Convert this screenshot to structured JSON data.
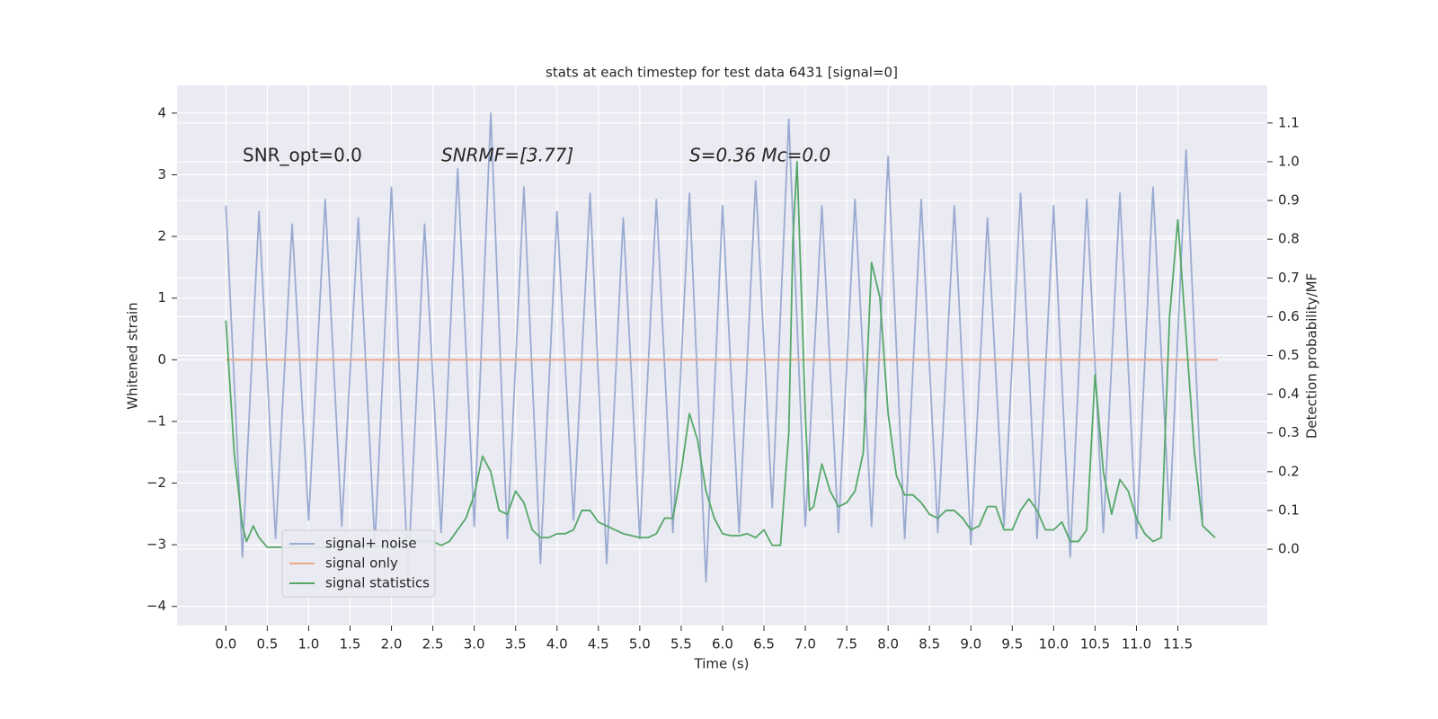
{
  "chart_data": {
    "type": "line",
    "title": "stats at each timestep for test data 6431 [signal=0]",
    "xlabel": "Time (s)",
    "ylabel": "Whitened strain",
    "y2label": "Detection probability/MF",
    "annotations": [
      "SNR_opt=0.0",
      "SNRMF=[3.77]",
      "S=0.36   Mc=0.0"
    ],
    "xlim": [
      -0.59,
      12.58
    ],
    "ylim": [
      -4.31,
      4.45
    ],
    "y2lim": [
      -0.197,
      1.197
    ],
    "xticks": [
      {
        "value": 0,
        "label": "0.0"
      },
      {
        "value": 0.5,
        "label": "0.5"
      },
      {
        "value": 1,
        "label": "1.0"
      },
      {
        "value": 1.5,
        "label": "1.5"
      },
      {
        "value": 2,
        "label": "2.0"
      },
      {
        "value": 2.5,
        "label": "2.5"
      },
      {
        "value": 3,
        "label": "3.0"
      },
      {
        "value": 3.5,
        "label": "3.5"
      },
      {
        "value": 4,
        "label": "4.0"
      },
      {
        "value": 4.5,
        "label": "4.5"
      },
      {
        "value": 5,
        "label": "5.0"
      },
      {
        "value": 5.5,
        "label": "5.5"
      },
      {
        "value": 6,
        "label": "6.0"
      },
      {
        "value": 6.5,
        "label": "6.5"
      },
      {
        "value": 7,
        "label": "7.0"
      },
      {
        "value": 7.5,
        "label": "7.5"
      },
      {
        "value": 8,
        "label": "8.0"
      },
      {
        "value": 8.5,
        "label": "8.5"
      },
      {
        "value": 9,
        "label": "9.0"
      },
      {
        "value": 9.5,
        "label": "9.5"
      },
      {
        "value": 10,
        "label": "10.0"
      },
      {
        "value": 10.5,
        "label": "10.5"
      },
      {
        "value": 11,
        "label": "11.0"
      },
      {
        "value": 11.5,
        "label": "11.5"
      }
    ],
    "yticks": [
      {
        "value": -4,
        "label": "−4"
      },
      {
        "value": -3,
        "label": "−3"
      },
      {
        "value": -2,
        "label": "−2"
      },
      {
        "value": -1,
        "label": "−1"
      },
      0,
      1,
      2,
      3,
      4
    ],
    "y2ticks": [
      {
        "value": 0,
        "label": "0.0"
      },
      0.1,
      0.2,
      0.3,
      0.4,
      0.5,
      0.6,
      0.7,
      0.8,
      0.9,
      {
        "value": 1,
        "label": "1.0"
      },
      1.1
    ],
    "grid": true,
    "legend": "lower left",
    "series": [
      {
        "name": "signal+ noise",
        "color": "#9aabd1",
        "x": [
          0,
          0.2,
          0.4,
          0.6,
          0.8,
          1,
          1.2,
          1.4,
          1.6,
          1.8,
          2,
          2.2,
          2.4,
          2.6,
          2.8,
          3,
          3.2,
          3.4,
          3.6,
          3.8,
          4,
          4.2,
          4.4,
          4.6,
          4.8,
          5,
          5.2,
          5.4,
          5.6,
          5.8,
          6,
          6.2,
          6.4,
          6.6,
          6.8,
          7,
          7.2,
          7.4,
          7.6,
          7.8,
          8,
          8.2,
          8.4,
          8.6,
          8.8,
          9,
          9.2,
          9.4,
          9.6,
          9.8,
          10,
          10.2,
          10.4,
          10.6,
          10.8,
          11,
          11.2,
          11.4,
          11.6,
          11.8
        ],
        "values": [
          2.5,
          -3.2,
          2.4,
          -2.9,
          2.2,
          -2.6,
          2.6,
          -2.7,
          2.3,
          -3.0,
          2.8,
          -3.5,
          2.2,
          -2.8,
          3.1,
          -2.7,
          4.0,
          -2.9,
          2.8,
          -3.3,
          2.4,
          -2.6,
          2.7,
          -3.3,
          2.3,
          -2.9,
          2.6,
          -2.8,
          2.7,
          -3.6,
          2.5,
          -2.8,
          2.9,
          -2.4,
          3.9,
          -2.7,
          2.5,
          -2.8,
          2.6,
          -2.7,
          3.3,
          -2.9,
          2.6,
          -2.8,
          2.5,
          -3.0,
          2.3,
          -2.7,
          2.7,
          -2.9,
          2.5,
          -3.2,
          2.6,
          -2.8,
          2.7,
          -2.9,
          2.8,
          -2.6,
          3.4,
          -2.6
        ]
      },
      {
        "name": "signal only",
        "color": "#e9a98b",
        "x": [
          0,
          11.98
        ],
        "values": [
          0,
          0
        ]
      },
      {
        "name": "signal statistics",
        "color": "#55a868",
        "axis": "y2",
        "x": [
          0,
          0.1,
          0.2,
          0.25,
          0.33,
          0.4,
          0.5,
          0.7,
          1.0,
          1.3,
          1.5,
          1.6,
          1.7,
          1.8,
          1.9,
          2.0,
          2.1,
          2.2,
          2.3,
          2.4,
          2.5,
          2.6,
          2.7,
          2.8,
          2.9,
          3.0,
          3.1,
          3.2,
          3.3,
          3.4,
          3.5,
          3.6,
          3.7,
          3.8,
          3.9,
          4.0,
          4.1,
          4.2,
          4.3,
          4.4,
          4.5,
          4.6,
          4.7,
          4.8,
          4.9,
          5.0,
          5.1,
          5.2,
          5.3,
          5.4,
          5.5,
          5.6,
          5.7,
          5.8,
          5.9,
          6.0,
          6.1,
          6.2,
          6.3,
          6.4,
          6.5,
          6.6,
          6.7,
          6.8,
          6.85,
          6.9,
          7.0,
          7.05,
          7.1,
          7.2,
          7.3,
          7.4,
          7.5,
          7.6,
          7.7,
          7.8,
          7.9,
          8.0,
          8.1,
          8.2,
          8.3,
          8.4,
          8.5,
          8.6,
          8.7,
          8.8,
          8.9,
          9.0,
          9.1,
          9.2,
          9.3,
          9.4,
          9.5,
          9.6,
          9.7,
          9.8,
          9.9,
          10.0,
          10.1,
          10.2,
          10.3,
          10.4,
          10.5,
          10.6,
          10.7,
          10.8,
          10.9,
          11.0,
          11.1,
          11.2,
          11.3,
          11.4,
          11.5,
          11.6,
          11.7,
          11.8,
          11.9,
          11.95
        ],
        "values": [
          0.59,
          0.25,
          0.06,
          0.02,
          0.06,
          0.03,
          0.005,
          0.005,
          0.005,
          0.005,
          0.01,
          0.01,
          0.01,
          0.005,
          0.01,
          0.0,
          0.01,
          0.035,
          0.02,
          0.02,
          0.02,
          0.01,
          0.02,
          0.05,
          0.08,
          0.14,
          0.24,
          0.2,
          0.1,
          0.09,
          0.15,
          0.12,
          0.05,
          0.03,
          0.03,
          0.04,
          0.04,
          0.05,
          0.1,
          0.1,
          0.07,
          0.06,
          0.05,
          0.04,
          0.035,
          0.03,
          0.03,
          0.04,
          0.08,
          0.08,
          0.2,
          0.35,
          0.28,
          0.15,
          0.08,
          0.04,
          0.035,
          0.035,
          0.04,
          0.03,
          0.05,
          0.01,
          0.01,
          0.3,
          0.8,
          1.0,
          0.35,
          0.1,
          0.11,
          0.22,
          0.15,
          0.11,
          0.12,
          0.15,
          0.25,
          0.74,
          0.65,
          0.35,
          0.19,
          0.14,
          0.14,
          0.12,
          0.09,
          0.08,
          0.1,
          0.1,
          0.08,
          0.05,
          0.06,
          0.11,
          0.11,
          0.05,
          0.05,
          0.1,
          0.13,
          0.1,
          0.05,
          0.05,
          0.07,
          0.02,
          0.02,
          0.05,
          0.45,
          0.2,
          0.09,
          0.18,
          0.15,
          0.08,
          0.04,
          0.02,
          0.03,
          0.6,
          0.85,
          0.55,
          0.25,
          0.06,
          0.04,
          0.03
        ]
      }
    ]
  }
}
